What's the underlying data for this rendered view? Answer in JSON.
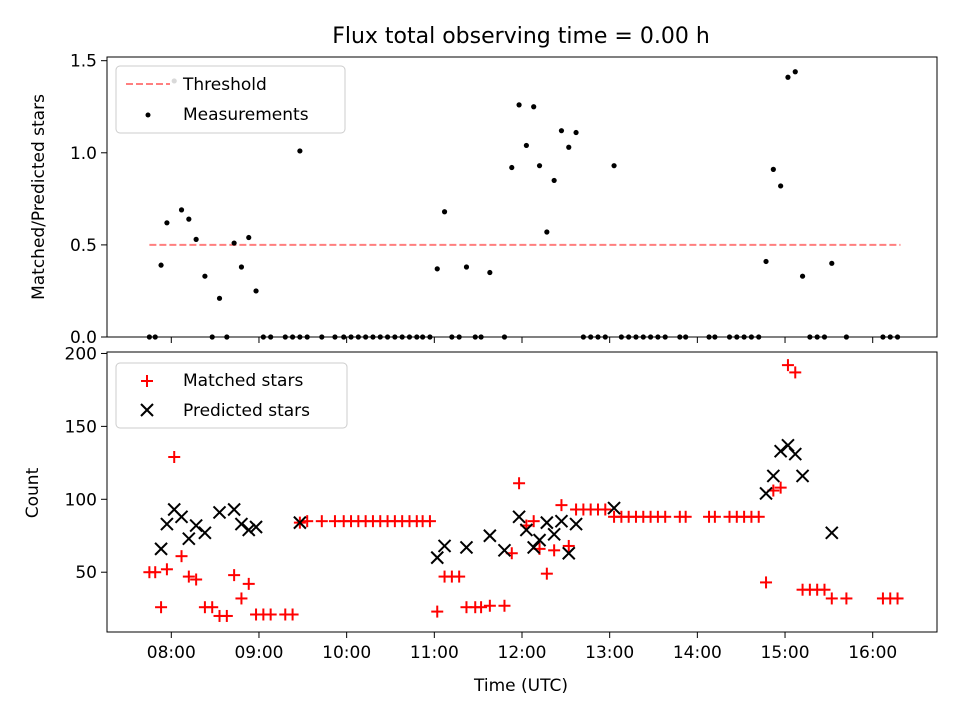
{
  "chart_data": [
    {
      "type": "scatter",
      "title": "Flux total observing time = 0.00 h",
      "ylabel": "Matched/Predicted stars",
      "ylim": [
        0,
        1.52
      ],
      "yticks": [
        0.0,
        0.5,
        1.0,
        1.5
      ],
      "ytick_labels": [
        "0.0",
        "0.5",
        "1.0",
        "1.5"
      ],
      "xlim": [
        "07:16",
        "16:44"
      ],
      "grid": false,
      "legend_position": "top-left",
      "threshold": {
        "name": "Threshold",
        "value": 0.5,
        "x_start": "07:45",
        "x_end": "16:19",
        "color": "#ff7f7f"
      },
      "series": [
        {
          "name": "Measurements",
          "color": "#000000",
          "points": [
            [
              "07:45",
              0
            ],
            [
              "07:49",
              0
            ],
            [
              "07:53",
              0.39
            ],
            [
              "07:57",
              0.62
            ],
            [
              "08:02",
              1.39
            ],
            [
              "08:07",
              0.69
            ],
            [
              "08:12",
              0.64
            ],
            [
              "08:17",
              0.53
            ],
            [
              "08:23",
              0.33
            ],
            [
              "08:28",
              0
            ],
            [
              "08:33",
              0.21
            ],
            [
              "08:38",
              0
            ],
            [
              "08:43",
              0.51
            ],
            [
              "08:48",
              0.38
            ],
            [
              "08:53",
              0.54
            ],
            [
              "08:58",
              0.25
            ],
            [
              "09:03",
              0
            ],
            [
              "09:08",
              0
            ],
            [
              "09:18",
              0
            ],
            [
              "09:23",
              0
            ],
            [
              "09:28",
              0
            ],
            [
              "09:28",
              1.01
            ],
            [
              "09:33",
              0
            ],
            [
              "09:43",
              0
            ],
            [
              "09:52",
              0
            ],
            [
              "09:58",
              0
            ],
            [
              "10:03",
              0
            ],
            [
              "10:08",
              0
            ],
            [
              "10:13",
              0
            ],
            [
              "10:18",
              0
            ],
            [
              "10:23",
              0
            ],
            [
              "10:28",
              0
            ],
            [
              "10:33",
              0
            ],
            [
              "10:38",
              0
            ],
            [
              "10:43",
              0
            ],
            [
              "10:48",
              0
            ],
            [
              "10:52",
              0
            ],
            [
              "10:57",
              0
            ],
            [
              "11:02",
              0.37
            ],
            [
              "11:07",
              0.68
            ],
            [
              "11:12",
              0
            ],
            [
              "11:17",
              0
            ],
            [
              "11:22",
              0.38
            ],
            [
              "11:28",
              0
            ],
            [
              "11:32",
              0
            ],
            [
              "11:38",
              0.35
            ],
            [
              "11:48",
              0
            ],
            [
              "11:53",
              0.92
            ],
            [
              "11:58",
              1.26
            ],
            [
              "12:03",
              1.04
            ],
            [
              "12:08",
              1.25
            ],
            [
              "12:12",
              0.93
            ],
            [
              "12:17",
              0.57
            ],
            [
              "12:22",
              0.85
            ],
            [
              "12:27",
              1.12
            ],
            [
              "12:32",
              1.03
            ],
            [
              "12:37",
              1.11
            ],
            [
              "12:42",
              0
            ],
            [
              "12:47",
              0
            ],
            [
              "12:52",
              0
            ],
            [
              "12:57",
              0
            ],
            [
              "13:03",
              0.93
            ],
            [
              "13:08",
              0
            ],
            [
              "13:13",
              0
            ],
            [
              "13:18",
              0
            ],
            [
              "13:23",
              0
            ],
            [
              "13:28",
              0
            ],
            [
              "13:33",
              0
            ],
            [
              "13:38",
              0
            ],
            [
              "13:48",
              0
            ],
            [
              "13:52",
              0
            ],
            [
              "14:08",
              0
            ],
            [
              "14:12",
              0
            ],
            [
              "14:22",
              0
            ],
            [
              "14:27",
              0
            ],
            [
              "14:32",
              0
            ],
            [
              "14:37",
              0
            ],
            [
              "14:42",
              0
            ],
            [
              "14:47",
              0.41
            ],
            [
              "14:52",
              0.91
            ],
            [
              "14:57",
              0.82
            ],
            [
              "15:02",
              1.41
            ],
            [
              "15:07",
              1.44
            ],
            [
              "15:12",
              0.33
            ],
            [
              "15:17",
              0
            ],
            [
              "15:22",
              0
            ],
            [
              "15:27",
              0
            ],
            [
              "15:32",
              0.4
            ],
            [
              "15:42",
              0
            ],
            [
              "16:07",
              0
            ],
            [
              "16:12",
              0
            ],
            [
              "16:17",
              0
            ]
          ]
        }
      ]
    },
    {
      "type": "scatter",
      "xlabel": "Time (UTC)",
      "ylabel": "Count",
      "ylim": [
        9,
        201
      ],
      "yticks": [
        50,
        100,
        150,
        200
      ],
      "ytick_labels": [
        "50",
        "100",
        "150",
        "200"
      ],
      "xlim": [
        "07:16",
        "16:44"
      ],
      "xticks": [
        "08:00",
        "09:00",
        "10:00",
        "11:00",
        "12:00",
        "13:00",
        "14:00",
        "15:00",
        "16:00"
      ],
      "grid": false,
      "legend_position": "top-left",
      "series": [
        {
          "name": "Matched stars",
          "marker": "+",
          "color": "#ff0000",
          "points": [
            [
              "07:45",
              50
            ],
            [
              "07:49",
              50
            ],
            [
              "07:53",
              26
            ],
            [
              "07:57",
              52
            ],
            [
              "08:02",
              129
            ],
            [
              "08:07",
              61
            ],
            [
              "08:12",
              47
            ],
            [
              "08:17",
              45
            ],
            [
              "08:23",
              26
            ],
            [
              "08:28",
              26
            ],
            [
              "08:33",
              20
            ],
            [
              "08:38",
              20
            ],
            [
              "08:43",
              48
            ],
            [
              "08:48",
              32
            ],
            [
              "08:53",
              42
            ],
            [
              "08:58",
              21
            ],
            [
              "09:03",
              21
            ],
            [
              "09:08",
              21
            ],
            [
              "09:18",
              21
            ],
            [
              "09:23",
              21
            ],
            [
              "09:28",
              84
            ],
            [
              "09:33",
              85
            ],
            [
              "09:43",
              85
            ],
            [
              "09:52",
              85
            ],
            [
              "09:58",
              85
            ],
            [
              "10:03",
              85
            ],
            [
              "10:08",
              85
            ],
            [
              "10:13",
              85
            ],
            [
              "10:18",
              85
            ],
            [
              "10:23",
              85
            ],
            [
              "10:28",
              85
            ],
            [
              "10:33",
              85
            ],
            [
              "10:38",
              85
            ],
            [
              "10:43",
              85
            ],
            [
              "10:48",
              85
            ],
            [
              "10:52",
              85
            ],
            [
              "10:57",
              85
            ],
            [
              "11:02",
              23
            ],
            [
              "11:07",
              47
            ],
            [
              "11:12",
              47
            ],
            [
              "11:17",
              47
            ],
            [
              "11:22",
              26
            ],
            [
              "11:28",
              26
            ],
            [
              "11:32",
              26
            ],
            [
              "11:38",
              27
            ],
            [
              "11:48",
              27
            ],
            [
              "11:53",
              63
            ],
            [
              "11:58",
              111
            ],
            [
              "12:03",
              82
            ],
            [
              "12:08",
              85
            ],
            [
              "12:12",
              66
            ],
            [
              "12:17",
              49
            ],
            [
              "12:22",
              65
            ],
            [
              "12:27",
              96
            ],
            [
              "12:32",
              68
            ],
            [
              "12:37",
              93
            ],
            [
              "12:42",
              93
            ],
            [
              "12:47",
              93
            ],
            [
              "12:52",
              93
            ],
            [
              "12:57",
              93
            ],
            [
              "13:03",
              88
            ],
            [
              "13:08",
              88
            ],
            [
              "13:13",
              88
            ],
            [
              "13:18",
              88
            ],
            [
              "13:23",
              88
            ],
            [
              "13:28",
              88
            ],
            [
              "13:33",
              88
            ],
            [
              "13:38",
              88
            ],
            [
              "13:48",
              88
            ],
            [
              "13:52",
              88
            ],
            [
              "14:08",
              88
            ],
            [
              "14:12",
              88
            ],
            [
              "14:22",
              88
            ],
            [
              "14:27",
              88
            ],
            [
              "14:32",
              88
            ],
            [
              "14:37",
              88
            ],
            [
              "14:42",
              88
            ],
            [
              "14:47",
              43
            ],
            [
              "14:52",
              106
            ],
            [
              "14:57",
              108
            ],
            [
              "15:02",
              192
            ],
            [
              "15:07",
              187
            ],
            [
              "15:12",
              38
            ],
            [
              "15:17",
              38
            ],
            [
              "15:22",
              38
            ],
            [
              "15:27",
              38
            ],
            [
              "15:32",
              32
            ],
            [
              "15:42",
              32
            ],
            [
              "16:07",
              32
            ],
            [
              "16:12",
              32
            ],
            [
              "16:17",
              32
            ]
          ]
        },
        {
          "name": "Predicted stars",
          "marker": "x",
          "color": "#000000",
          "points": [
            [
              "07:53",
              66
            ],
            [
              "07:57",
              83
            ],
            [
              "08:02",
              93
            ],
            [
              "08:07",
              88
            ],
            [
              "08:12",
              73
            ],
            [
              "08:17",
              82
            ],
            [
              "08:23",
              77
            ],
            [
              "08:33",
              91
            ],
            [
              "08:43",
              93
            ],
            [
              "08:48",
              83
            ],
            [
              "08:53",
              79
            ],
            [
              "08:58",
              81
            ],
            [
              "09:28",
              84
            ],
            [
              "11:02",
              60
            ],
            [
              "11:07",
              68
            ],
            [
              "11:22",
              67
            ],
            [
              "11:38",
              75
            ],
            [
              "11:48",
              65
            ],
            [
              "11:58",
              88
            ],
            [
              "12:03",
              79
            ],
            [
              "12:08",
              67
            ],
            [
              "12:12",
              72
            ],
            [
              "12:17",
              84
            ],
            [
              "12:22",
              76
            ],
            [
              "12:27",
              85
            ],
            [
              "12:32",
              63
            ],
            [
              "12:37",
              83
            ],
            [
              "13:03",
              94
            ],
            [
              "14:47",
              104
            ],
            [
              "14:52",
              116
            ],
            [
              "14:57",
              133
            ],
            [
              "15:02",
              137
            ],
            [
              "15:07",
              131
            ],
            [
              "15:12",
              116
            ],
            [
              "15:32",
              77
            ]
          ]
        }
      ]
    }
  ]
}
